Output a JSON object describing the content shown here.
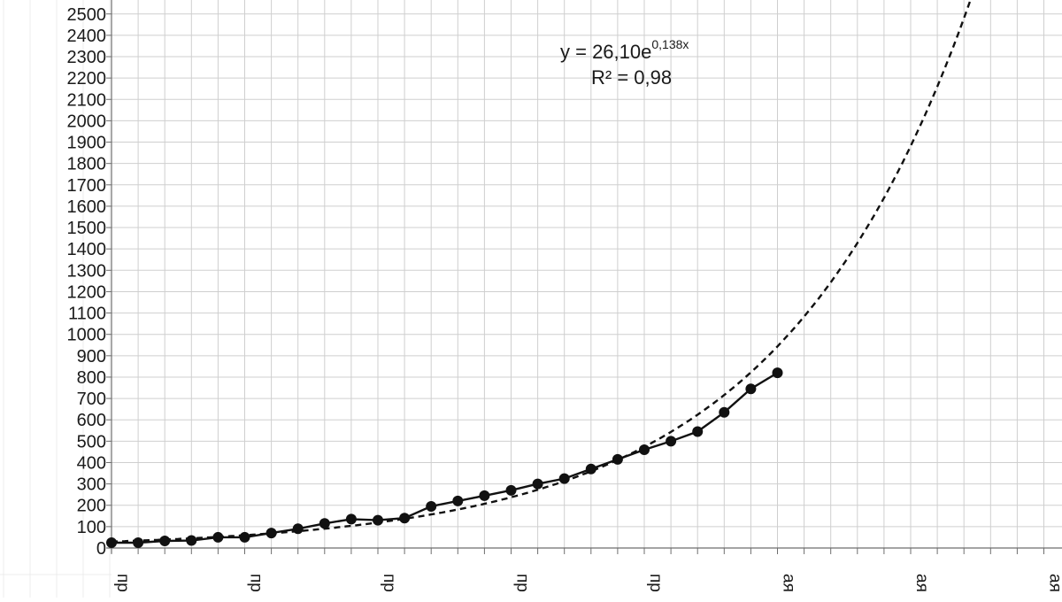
{
  "chart_data": {
    "type": "line",
    "y_ticks": [
      "0",
      "100",
      "200",
      "300",
      "400",
      "500",
      "600",
      "700",
      "800",
      "900",
      "1000",
      "1100",
      "1200",
      "1300",
      "1400",
      "1500",
      "1600",
      "1700",
      "1800",
      "1900",
      "2000",
      "2100",
      "2200",
      "2300",
      "2400",
      "2500"
    ],
    "ylim": [
      0,
      2550
    ],
    "x_range": [
      1,
      36
    ],
    "x_tick_labels": [
      {
        "x": 1,
        "label": "пр"
      },
      {
        "x": 6,
        "label": "пр"
      },
      {
        "x": 11,
        "label": "пр"
      },
      {
        "x": 16,
        "label": "пр"
      },
      {
        "x": 21,
        "label": "пр"
      },
      {
        "x": 26,
        "label": "ая"
      },
      {
        "x": 31,
        "label": "ая"
      },
      {
        "x": 36,
        "label": "ая"
      }
    ],
    "series": [
      {
        "style": "solid-markers",
        "color": "#111111",
        "x": [
          1,
          2,
          3,
          4,
          5,
          6,
          7,
          8,
          9,
          10,
          11,
          12,
          13,
          14,
          15,
          16,
          17,
          18,
          19,
          20,
          21,
          22,
          23,
          24,
          25,
          26
        ],
        "y": [
          25,
          25,
          33,
          35,
          50,
          50,
          70,
          90,
          115,
          135,
          130,
          140,
          195,
          220,
          245,
          270,
          300,
          325,
          370,
          415,
          460,
          500,
          545,
          635,
          745,
          820
        ]
      }
    ],
    "trendline": {
      "type": "exponential",
      "a": 26.1,
      "b": 0.138,
      "style": "dashed",
      "color": "#111111",
      "equation_prefix": "y = 26,10e",
      "equation_exponent": "0,138x",
      "r2_label": "R² = 0,98"
    },
    "grid": true
  }
}
